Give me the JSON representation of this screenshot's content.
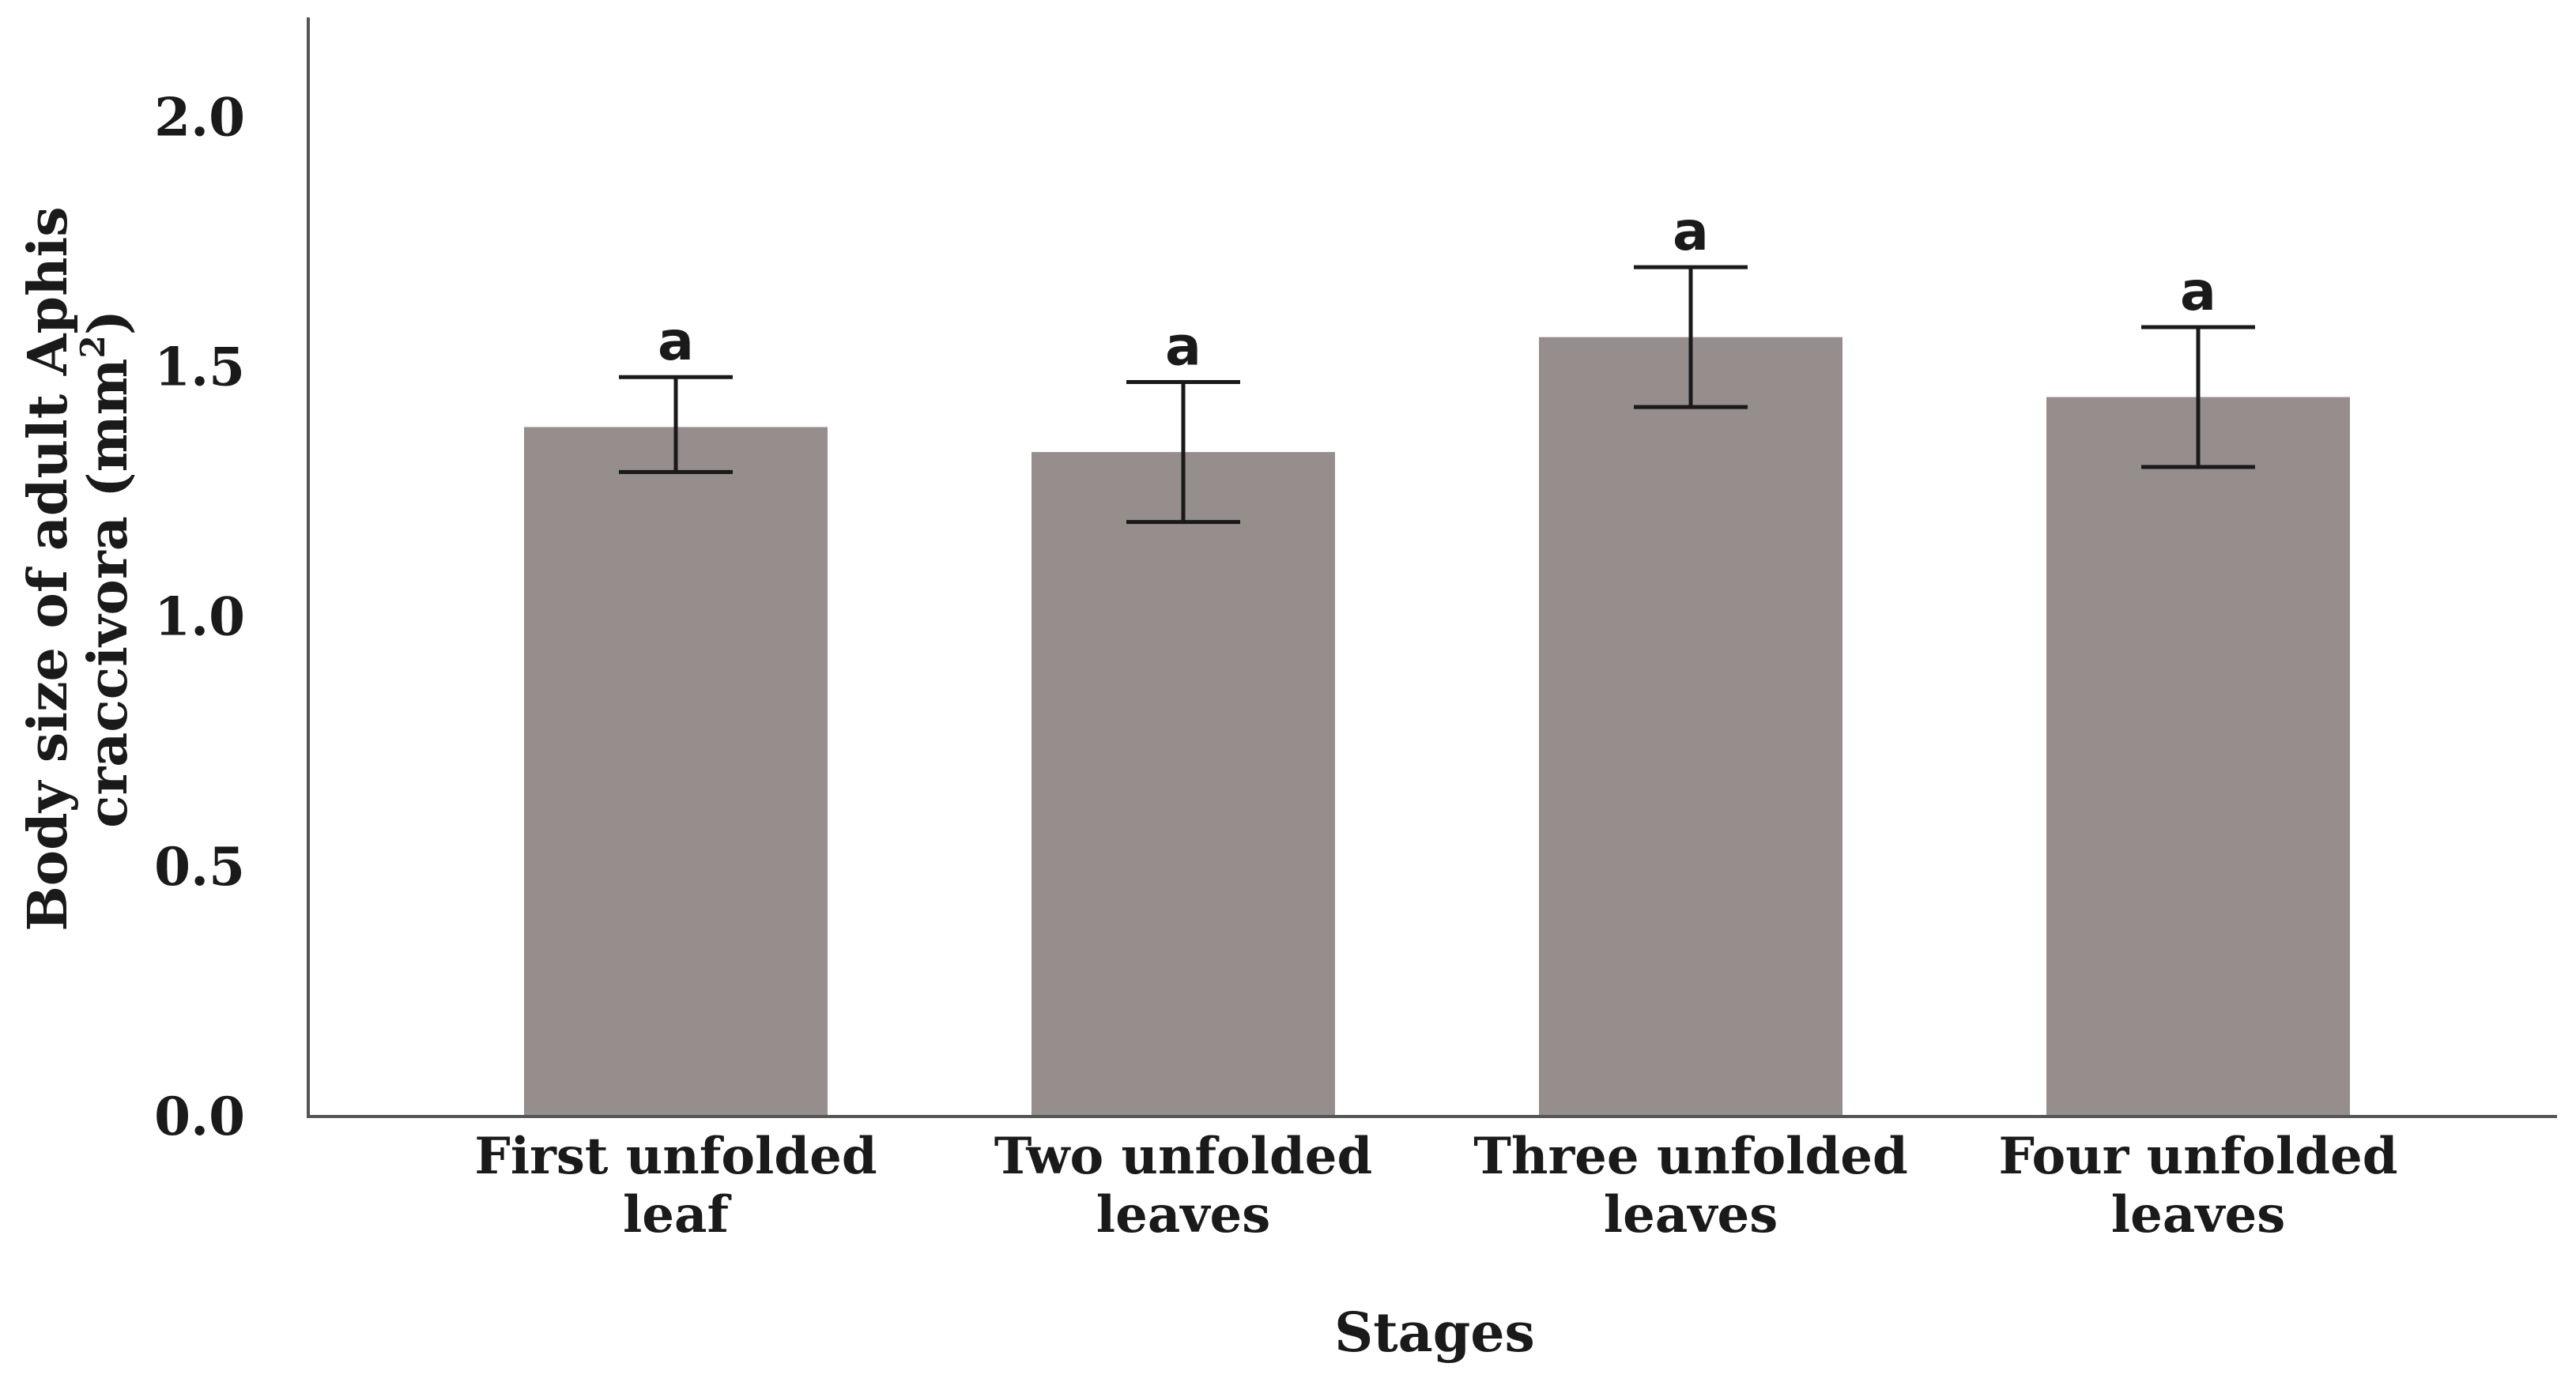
{
  "chart_data": {
    "type": "bar",
    "categories": [
      [
        "First unfolded",
        "leaf"
      ],
      [
        "Two unfolded",
        "leaves"
      ],
      [
        "Three unfolded",
        "leaves"
      ],
      [
        "Four unfolded",
        "leaves"
      ]
    ],
    "values": [
      1.38,
      1.33,
      1.56,
      1.44
    ],
    "error_low": [
      1.29,
      1.19,
      1.42,
      1.3
    ],
    "error_high": [
      1.48,
      1.47,
      1.7,
      1.58
    ],
    "significance_labels": [
      "a",
      "a",
      "a",
      "a"
    ],
    "xlabel": "Stages",
    "ylabel_line1": "Body size of adult Aphis",
    "ylabel_line2": "craccivora (mm",
    "ylabel_sup": "2",
    "ylabel_close": ")",
    "yticks": [
      "0.0",
      "0.5",
      "1.0",
      "1.5",
      "2.0"
    ],
    "ylim": [
      0,
      2.2
    ],
    "bar_color": "#958e8d",
    "grid": false,
    "legend": "none"
  }
}
